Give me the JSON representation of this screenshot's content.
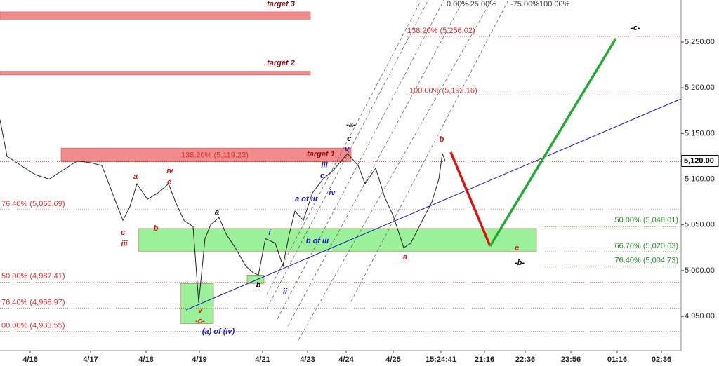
{
  "chart_data": {
    "type": "line",
    "xlim": [
      0,
      970
    ],
    "ylim": [
      4912.5,
      5296
    ],
    "xticks": [
      {
        "value": 43,
        "label": "4/16"
      },
      {
        "value": 129,
        "label": "4/17"
      },
      {
        "value": 208,
        "label": "4/18"
      },
      {
        "value": 284,
        "label": "4/19"
      },
      {
        "value": 374,
        "label": "4/21"
      },
      {
        "value": 438,
        "label": "4/23"
      },
      {
        "value": 493,
        "label": "4/24"
      },
      {
        "value": 560,
        "label": "4/25"
      },
      {
        "value": 628,
        "label": "15:24:41"
      },
      {
        "value": 690,
        "label": "21:16"
      },
      {
        "value": 748,
        "label": "22:36"
      },
      {
        "value": 813,
        "label": "23:56"
      },
      {
        "value": 879,
        "label": "01:16"
      },
      {
        "value": 942,
        "label": "02:36"
      }
    ],
    "yticks": [
      {
        "value": 4950,
        "label": "4,950.00"
      },
      {
        "value": 5000,
        "label": "5,000.00"
      },
      {
        "value": 5050,
        "label": "5,050.00"
      },
      {
        "value": 5100,
        "label": "5,100.00"
      },
      {
        "value": 5150,
        "label": "5,150.00"
      },
      {
        "value": 5200,
        "label": "5,200.00"
      },
      {
        "value": 5250,
        "label": "5,250.00"
      }
    ],
    "last_price": {
      "value": 5120,
      "label": "5,120.00"
    },
    "series": [
      {
        "color": "#222222",
        "x": [
          0,
          10,
          30,
          50,
          70,
          90,
          110,
          130,
          145,
          160,
          175,
          185,
          195,
          210,
          225,
          240,
          250,
          262,
          275,
          283,
          292,
          300,
          312,
          322,
          335,
          350,
          360,
          368,
          378,
          392,
          403,
          412,
          420,
          432,
          445,
          460,
          475,
          495,
          510,
          520,
          535,
          548,
          560,
          575,
          585,
          595,
          605,
          615,
          625,
          630,
          634
        ],
        "values": [
          5165,
          5125,
          5115,
          5105,
          5100,
          5110,
          5120,
          5118,
          5115,
          5085,
          5055,
          5070,
          5095,
          5078,
          5085,
          5095,
          5075,
          5055,
          5048,
          4965,
          5035,
          5050,
          5058,
          5040,
          5025,
          5005,
          4998,
          4995,
          5035,
          5030,
          5005,
          5040,
          5065,
          5055,
          5085,
          5100,
          5110,
          5128,
          5115,
          5095,
          5112,
          5080,
          5060,
          5025,
          5030,
          5045,
          5060,
          5075,
          5100,
          5128,
          5120
        ]
      }
    ],
    "fib_levels": [
      {
        "label": "138.20% (5,256.02)",
        "value": 5256.02,
        "color": "#e03030"
      },
      {
        "label": "100.00% (5,192.16)",
        "value": 5192.16,
        "color": "#e03030"
      },
      {
        "label": "138.20% (5,119.23)",
        "value": 5119.23,
        "color": "#e03030"
      },
      {
        "label": "76.40% (5,066.69)",
        "value": 5066.69,
        "color": "#e03030"
      },
      {
        "label": "50.00% (4,987.41)",
        "value": 4987.41,
        "color": "#e03030"
      },
      {
        "label": "76.40% (4,958.97)",
        "value": 4958.97,
        "color": "#e03030"
      },
      {
        "label": "00.00% (4,933.55)",
        "value": 4933.55,
        "color": "#e03030"
      },
      {
        "label": "50.00% (5,048.01)",
        "value": 5048.01,
        "color": "#2a8a2a"
      },
      {
        "label": "66.70% (5,020.63)",
        "value": 5020.63,
        "color": "#2a8a2a"
      },
      {
        "label": "76.40% (5,004.73)",
        "value": 5004.73,
        "color": "#2a8a2a"
      }
    ],
    "zones": [
      {
        "range": [
          5275,
          5283
        ],
        "color": "#f08080"
      },
      {
        "range": [
          5214,
          5218
        ],
        "color": "#f08080"
      },
      {
        "range": [
          5119,
          5134
        ],
        "color": "#f08080"
      },
      {
        "range": [
          5020.63,
          5046
        ],
        "color": "#90f090"
      },
      {
        "range": [
          4942,
          4986
        ],
        "color": "#90f090"
      },
      {
        "range": [
          4986,
          4995
        ],
        "color": "#90f090"
      }
    ],
    "channel_labels": [
      "0.00%",
      "-25.00%",
      "-75.00%100.00%"
    ],
    "labels": [
      {
        "text": "target 3",
        "color": "#8b1010"
      },
      {
        "text": "target 2",
        "color": "#8b1010"
      },
      {
        "text": "target 1",
        "color": "#8b1010"
      },
      {
        "text": "-c-",
        "color": "#000000"
      },
      {
        "text": "-a-",
        "color": "#000000"
      },
      {
        "text": "c",
        "color": "#000000"
      },
      {
        "text": "v",
        "color": "#1a1acc"
      },
      {
        "text": "iii",
        "color": "#1a1acc"
      },
      {
        "text": "c",
        "color": "#1a1acc"
      },
      {
        "text": "iv",
        "color": "#1a1acc"
      },
      {
        "text": "a of iii",
        "color": "#1a1acc"
      },
      {
        "text": "i",
        "color": "#1a1acc"
      },
      {
        "text": "b of iii",
        "color": "#1a1acc"
      },
      {
        "text": "ii",
        "color": "#1a1acc"
      },
      {
        "text": "a",
        "color": "#000000"
      },
      {
        "text": "b",
        "color": "#000000"
      },
      {
        "text": "a",
        "color": "#e01010"
      },
      {
        "text": "iv",
        "color": "#e01010"
      },
      {
        "text": "c",
        "color": "#e01010"
      },
      {
        "text": "c",
        "color": "#e01010"
      },
      {
        "text": "iii",
        "color": "#e01010"
      },
      {
        "text": "b",
        "color": "#e01010"
      },
      {
        "text": "v",
        "color": "#e01010"
      },
      {
        "text": "-c-",
        "color": "#e01010"
      },
      {
        "text": "(a) of (iv)",
        "color": "#1a1acc"
      },
      {
        "text": "b",
        "color": "#e01010"
      },
      {
        "text": "a",
        "color": "#e01010"
      },
      {
        "text": "c",
        "color": "#e01010"
      },
      {
        "text": "-b-",
        "color": "#000000"
      }
    ]
  }
}
